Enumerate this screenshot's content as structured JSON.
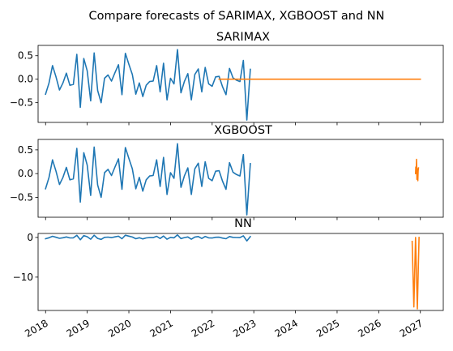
{
  "figure": {
    "suptitle": "Compare forecasts of SARIMAX, XGBOOST and NN"
  },
  "colors": {
    "history": "#1f77b4",
    "forecast": "#ff7f0e",
    "axes": "#000000",
    "background": "#ffffff"
  },
  "chart_data": [
    {
      "type": "line",
      "title": "SARIMAX",
      "xlabel": "",
      "ylabel": "",
      "x_axis": "date",
      "x_tick_labels": [
        "2018",
        "2019",
        "2020",
        "2021",
        "2022",
        "2023",
        "2024",
        "2025",
        "2026",
        "2027"
      ],
      "x_tick_labels_shown": false,
      "yticks": [
        0.5,
        0.0,
        -0.5
      ],
      "y_tick_labels": [
        "0.5",
        "0.0",
        "−0.5"
      ],
      "ylim": [
        -0.92,
        0.72
      ],
      "grid": false,
      "series": [
        {
          "role": "history",
          "color": "#1f77b4",
          "x": [
            "2018-01",
            "2018-02",
            "2018-03",
            "2018-04",
            "2018-05",
            "2018-06",
            "2018-07",
            "2018-08",
            "2018-09",
            "2018-10",
            "2018-11",
            "2018-12",
            "2019-01",
            "2019-02",
            "2019-03",
            "2019-04",
            "2019-05",
            "2019-06",
            "2019-07",
            "2019-08",
            "2019-09",
            "2019-10",
            "2019-11",
            "2019-12",
            "2020-01",
            "2020-02",
            "2020-03",
            "2020-04",
            "2020-05",
            "2020-06",
            "2020-07",
            "2020-08",
            "2020-09",
            "2020-10",
            "2020-11",
            "2020-12",
            "2021-01",
            "2021-02",
            "2021-03",
            "2021-04",
            "2021-05",
            "2021-06",
            "2021-07",
            "2021-08",
            "2021-09",
            "2021-10",
            "2021-11",
            "2021-12",
            "2022-01",
            "2022-02",
            "2022-03",
            "2022-04",
            "2022-05",
            "2022-06",
            "2022-07",
            "2022-08",
            "2022-09",
            "2022-10",
            "2022-11",
            "2022-12"
          ],
          "y": [
            -0.32,
            -0.08,
            0.29,
            0.05,
            -0.23,
            -0.08,
            0.13,
            -0.13,
            -0.11,
            0.53,
            -0.6,
            0.44,
            0.18,
            -0.46,
            0.56,
            -0.24,
            -0.5,
            0.02,
            0.09,
            -0.04,
            0.14,
            0.31,
            -0.33,
            0.55,
            0.32,
            0.1,
            -0.32,
            -0.08,
            -0.37,
            -0.13,
            -0.05,
            -0.04,
            0.29,
            -0.27,
            0.34,
            -0.44,
            0.02,
            -0.1,
            0.63,
            -0.29,
            -0.05,
            0.12,
            -0.44,
            0.1,
            0.22,
            -0.27,
            0.25,
            -0.1,
            -0.15,
            0.05,
            0.06,
            -0.16,
            -0.33,
            0.23,
            0.03,
            -0.02,
            -0.05,
            0.4,
            -0.87,
            0.21
          ]
        },
        {
          "role": "forecast",
          "color": "#ff7f0e",
          "x": [
            "2022-03",
            "2027-01"
          ],
          "y": [
            0.0,
            0.0
          ]
        }
      ]
    },
    {
      "type": "line",
      "title": "XGBOOST",
      "xlabel": "",
      "ylabel": "",
      "x_axis": "date",
      "x_tick_labels": [
        "2018",
        "2019",
        "2020",
        "2021",
        "2022",
        "2023",
        "2024",
        "2025",
        "2026",
        "2027"
      ],
      "x_tick_labels_shown": false,
      "yticks": [
        0.5,
        0.0,
        -0.5
      ],
      "y_tick_labels": [
        "0.5",
        "0.0",
        "−0.5"
      ],
      "ylim": [
        -0.92,
        0.72
      ],
      "grid": false,
      "series": [
        {
          "role": "history",
          "color": "#1f77b4",
          "x": [
            "2018-01",
            "2018-02",
            "2018-03",
            "2018-04",
            "2018-05",
            "2018-06",
            "2018-07",
            "2018-08",
            "2018-09",
            "2018-10",
            "2018-11",
            "2018-12",
            "2019-01",
            "2019-02",
            "2019-03",
            "2019-04",
            "2019-05",
            "2019-06",
            "2019-07",
            "2019-08",
            "2019-09",
            "2019-10",
            "2019-11",
            "2019-12",
            "2020-01",
            "2020-02",
            "2020-03",
            "2020-04",
            "2020-05",
            "2020-06",
            "2020-07",
            "2020-08",
            "2020-09",
            "2020-10",
            "2020-11",
            "2020-12",
            "2021-01",
            "2021-02",
            "2021-03",
            "2021-04",
            "2021-05",
            "2021-06",
            "2021-07",
            "2021-08",
            "2021-09",
            "2021-10",
            "2021-11",
            "2021-12",
            "2022-01",
            "2022-02",
            "2022-03",
            "2022-04",
            "2022-05",
            "2022-06",
            "2022-07",
            "2022-08",
            "2022-09",
            "2022-10",
            "2022-11",
            "2022-12"
          ],
          "y": [
            -0.32,
            -0.08,
            0.29,
            0.05,
            -0.23,
            -0.08,
            0.13,
            -0.13,
            -0.11,
            0.53,
            -0.6,
            0.44,
            0.18,
            -0.46,
            0.56,
            -0.24,
            -0.5,
            0.02,
            0.09,
            -0.04,
            0.14,
            0.31,
            -0.33,
            0.55,
            0.32,
            0.1,
            -0.32,
            -0.08,
            -0.37,
            -0.13,
            -0.05,
            -0.04,
            0.29,
            -0.27,
            0.34,
            -0.44,
            0.02,
            -0.1,
            0.63,
            -0.29,
            -0.05,
            0.12,
            -0.44,
            0.1,
            0.22,
            -0.27,
            0.25,
            -0.1,
            -0.15,
            0.05,
            0.06,
            -0.16,
            -0.33,
            0.23,
            0.03,
            -0.02,
            -0.05,
            0.4,
            -0.87,
            0.21
          ]
        },
        {
          "role": "forecast",
          "color": "#ff7f0e",
          "x": [
            "2026-11-20",
            "2026-11-22",
            "2026-11-25",
            "2026-11-28",
            "2026-12-01",
            "2026-12-03",
            "2026-12-06",
            "2026-12-09",
            "2026-12-12",
            "2026-12-15"
          ],
          "y": [
            0.0,
            0.14,
            0.05,
            0.3,
            -0.12,
            0.08,
            0.1,
            -0.15,
            0.06,
            0.12
          ]
        }
      ]
    },
    {
      "type": "line",
      "title": "NN",
      "xlabel": "",
      "ylabel": "",
      "x_axis": "date",
      "x_tick_labels": [
        "2018",
        "2019",
        "2020",
        "2021",
        "2022",
        "2023",
        "2024",
        "2025",
        "2026",
        "2027"
      ],
      "x_tick_labels_shown": true,
      "x_tick_rotation": "30",
      "yticks": [
        0,
        -10
      ],
      "y_tick_labels": [
        "0",
        "−10"
      ],
      "ylim": [
        -18.4,
        1.0
      ],
      "grid": false,
      "series": [
        {
          "role": "history",
          "color": "#1f77b4",
          "x": [
            "2018-01",
            "2018-02",
            "2018-03",
            "2018-04",
            "2018-05",
            "2018-06",
            "2018-07",
            "2018-08",
            "2018-09",
            "2018-10",
            "2018-11",
            "2018-12",
            "2019-01",
            "2019-02",
            "2019-03",
            "2019-04",
            "2019-05",
            "2019-06",
            "2019-07",
            "2019-08",
            "2019-09",
            "2019-10",
            "2019-11",
            "2019-12",
            "2020-01",
            "2020-02",
            "2020-03",
            "2020-04",
            "2020-05",
            "2020-06",
            "2020-07",
            "2020-08",
            "2020-09",
            "2020-10",
            "2020-11",
            "2020-12",
            "2021-01",
            "2021-02",
            "2021-03",
            "2021-04",
            "2021-05",
            "2021-06",
            "2021-07",
            "2021-08",
            "2021-09",
            "2021-10",
            "2021-11",
            "2021-12",
            "2022-01",
            "2022-02",
            "2022-03",
            "2022-04",
            "2022-05",
            "2022-06",
            "2022-07",
            "2022-08",
            "2022-09",
            "2022-10",
            "2022-11",
            "2022-12"
          ],
          "y": [
            -0.32,
            -0.08,
            0.29,
            0.05,
            -0.23,
            -0.08,
            0.13,
            -0.13,
            -0.11,
            0.53,
            -0.6,
            0.44,
            0.18,
            -0.46,
            0.56,
            -0.24,
            -0.5,
            0.02,
            0.09,
            -0.04,
            0.14,
            0.31,
            -0.33,
            0.55,
            0.32,
            0.1,
            -0.32,
            -0.08,
            -0.37,
            -0.13,
            -0.05,
            -0.04,
            0.29,
            -0.27,
            0.34,
            -0.44,
            0.02,
            -0.1,
            0.63,
            -0.29,
            -0.05,
            0.12,
            -0.44,
            0.1,
            0.22,
            -0.27,
            0.25,
            -0.1,
            -0.15,
            0.05,
            0.06,
            -0.16,
            -0.33,
            0.23,
            0.03,
            -0.02,
            -0.05,
            0.4,
            -0.87,
            0.21
          ]
        },
        {
          "role": "forecast",
          "color": "#ff7f0e",
          "x": [
            "2026-10-20",
            "2026-11-05",
            "2026-11-20",
            "2026-12-05",
            "2026-12-20"
          ],
          "y": [
            -1.0,
            -17.5,
            0.0,
            -18.0,
            0.0
          ]
        }
      ]
    }
  ]
}
